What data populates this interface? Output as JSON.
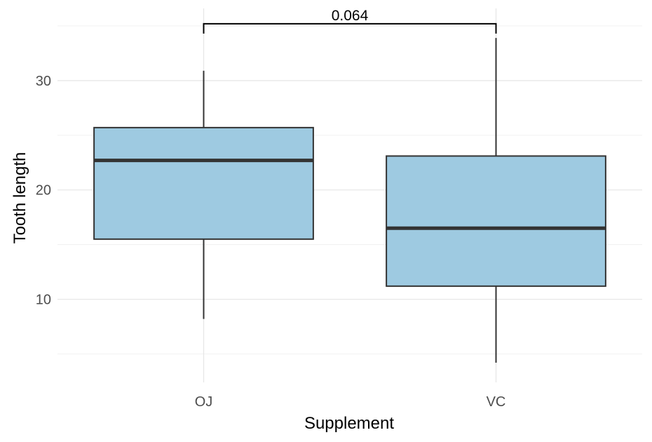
{
  "chart_data": {
    "type": "box",
    "xlabel": "Supplement",
    "ylabel": "Tooth length",
    "categories": [
      "OJ",
      "VC"
    ],
    "boxes": [
      {
        "category": "OJ",
        "min": 8.2,
        "q1": 15.5,
        "median": 22.7,
        "q3": 25.7,
        "max": 30.9
      },
      {
        "category": "VC",
        "min": 4.2,
        "q1": 11.2,
        "median": 16.5,
        "q3": 23.1,
        "max": 33.9
      }
    ],
    "ylim": [
      2.4,
      36.6
    ],
    "yticks": [
      10,
      20,
      30
    ],
    "grid": true,
    "fill_color": "#9ecae1",
    "comparison": {
      "from": "OJ",
      "to": "VC",
      "label": "0.064",
      "y": 35.2
    }
  }
}
